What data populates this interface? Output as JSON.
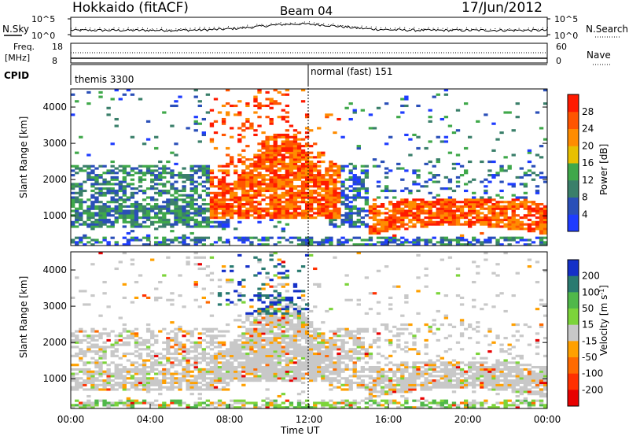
{
  "header": {
    "title": "Hokkaido (fitACF)",
    "beam": "Beam 04",
    "date": "17/Jun/2012"
  },
  "top_panels": {
    "nsky_label": "N.Sky",
    "nsky_ticks": [
      "10^5",
      "10^0"
    ],
    "nsearch_ticks": [
      "10^5",
      "10^0"
    ],
    "nsearch_label": "N.Search",
    "freq_label_1": "Freq.",
    "freq_label_2": "[MHz]",
    "freq_ticks": [
      "18",
      "8"
    ],
    "nave_ticks": [
      "60",
      "0"
    ],
    "nave_label": "Nave",
    "cpid_label": "CPID",
    "cpid_modes": [
      {
        "name": "themis 3300",
        "start": "00:00"
      },
      {
        "name": "normal (fast) 151",
        "start": "12:00"
      }
    ]
  },
  "chart_data": [
    {
      "type": "heatmap",
      "title": "",
      "ylabel": "Slant Range [km]",
      "xlabel": "",
      "x_range": [
        "00:00",
        "24:00"
      ],
      "ylim": [
        180,
        4500
      ],
      "yticks": [
        "1000",
        "2000",
        "3000",
        "4000"
      ],
      "colorbar": {
        "label": "Power [dB]",
        "ticks": [
          "4",
          "8",
          "12",
          "16",
          "20",
          "24",
          "28"
        ],
        "colors": [
          "#1e3cff",
          "#2a4fb8",
          "#3a7f6a",
          "#3fa84a",
          "#e8c000",
          "#ff8c00",
          "#ff5500",
          "#ff1a00"
        ]
      }
    },
    {
      "type": "heatmap",
      "title": "",
      "ylabel": "Slant Range [km]",
      "xlabel": "Time UT",
      "x_range": [
        "00:00",
        "24:00"
      ],
      "xticks": [
        "00:00",
        "04:00",
        "08:00",
        "12:00",
        "16:00",
        "20:00",
        "00:00"
      ],
      "ylim": [
        180,
        4500
      ],
      "yticks": [
        "1000",
        "2000",
        "3000",
        "4000"
      ],
      "colorbar": {
        "label": "Velocity [m s^-1]",
        "ticks": [
          "200",
          "100",
          "50",
          "15",
          "-15",
          "-50",
          "-100",
          "-200"
        ],
        "colors": [
          "#1430c8",
          "#2a7a70",
          "#50b84a",
          "#7cd43a",
          "#c8c8c8",
          "#ffa000",
          "#ff6a00",
          "#ff3000",
          "#e80000"
        ]
      }
    }
  ]
}
